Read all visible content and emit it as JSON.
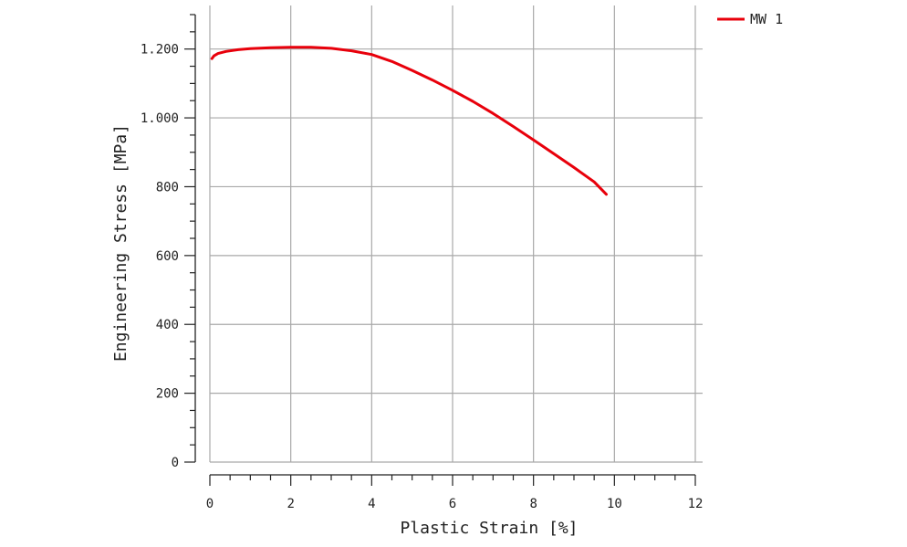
{
  "chart_data": {
    "type": "line",
    "xlabel": "Plastic Strain [%]",
    "ylabel": "Engineering Stress [MPa]",
    "xlim": [
      0,
      12
    ],
    "ylim": [
      0,
      1300
    ],
    "x_ticks": [
      0,
      2,
      4,
      6,
      8,
      10,
      12
    ],
    "x_tick_labels": [
      "0",
      "2",
      "4",
      "6",
      "8",
      "10",
      "12"
    ],
    "y_ticks": [
      0,
      200,
      400,
      600,
      800,
      1000,
      1200
    ],
    "y_tick_labels": [
      "0",
      "200",
      "400",
      "600",
      "800",
      "1.000",
      "1.200"
    ],
    "grid": true,
    "legend_position": "top-right",
    "series": [
      {
        "name": "MW 1",
        "color": "#e8000b",
        "x": [
          0.05,
          0.1,
          0.2,
          0.4,
          0.7,
          1.0,
          1.5,
          2.0,
          2.5,
          3.0,
          3.5,
          4.0,
          4.5,
          5.0,
          5.5,
          6.0,
          6.5,
          7.0,
          7.5,
          8.0,
          8.5,
          9.0,
          9.5,
          9.8
        ],
        "y": [
          1172,
          1180,
          1187,
          1193,
          1198,
          1201,
          1204,
          1205,
          1205,
          1202,
          1195,
          1184,
          1164,
          1138,
          1110,
          1080,
          1048,
          1013,
          975,
          936,
          896,
          856,
          814,
          778
        ]
      }
    ]
  }
}
